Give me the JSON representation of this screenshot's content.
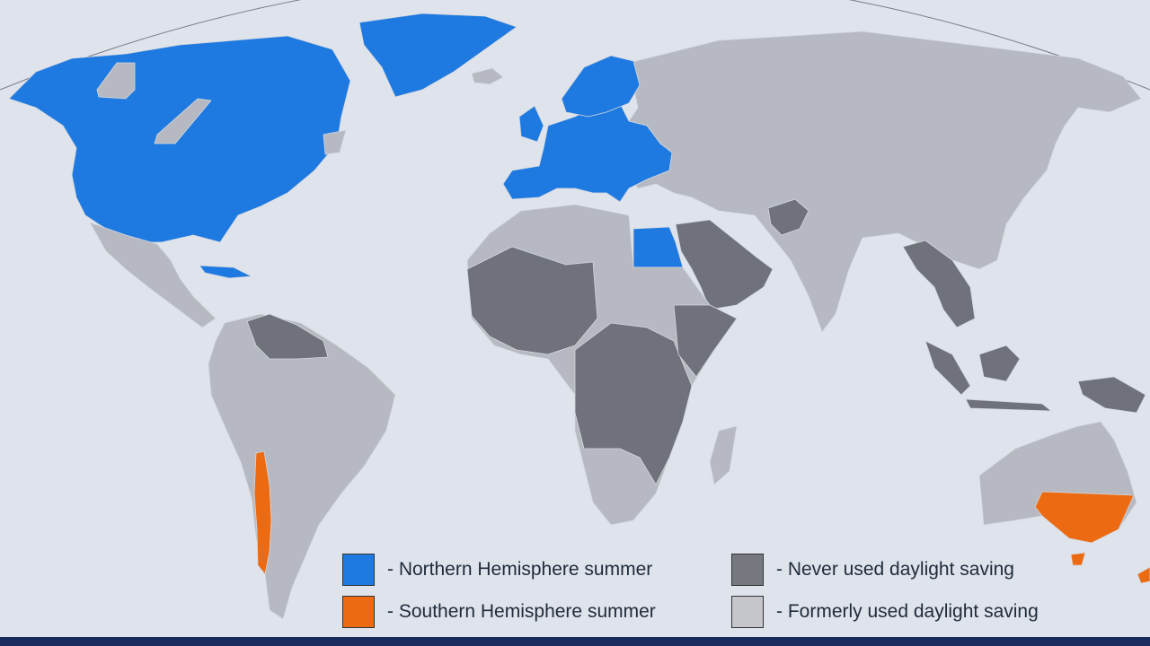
{
  "legend": {
    "items": [
      {
        "id": "north",
        "label": "- Northern Hemisphere summer",
        "color": "#1e7ae0"
      },
      {
        "id": "south",
        "label": "- Southern Hemisphere summer",
        "color": "#ec6a12"
      },
      {
        "id": "never",
        "label": "- Never used daylight saving",
        "color": "#767880"
      },
      {
        "id": "formerly",
        "label": "- Formerly used daylight saving",
        "color": "#c4c6cc"
      }
    ]
  },
  "colors": {
    "ocean": "#dfe3ec",
    "land_formerly": "#b6b9c1",
    "land_never": "#6f727b",
    "north": "#1e7ae0",
    "south": "#ec6a12",
    "border": "#d5d8de",
    "footer": "#1a2b5e"
  }
}
